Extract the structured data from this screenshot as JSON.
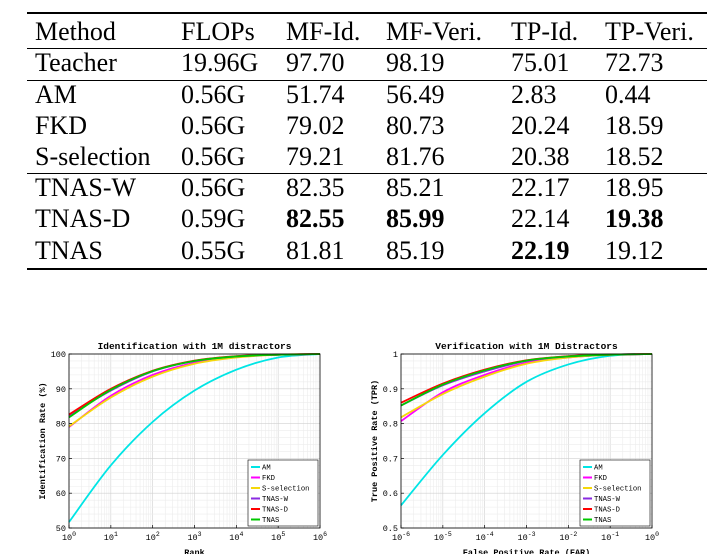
{
  "table": {
    "columns": [
      "Method",
      "FLOPs",
      "MF-Id.",
      "MF-Veri.",
      "TP-Id.",
      "TP-Veri."
    ],
    "rows": [
      {
        "cells": [
          "Teacher",
          "19.96G",
          "97.70",
          "98.19",
          "75.01",
          "72.73"
        ],
        "bold": []
      },
      {
        "cells": [
          "AM",
          "0.56G",
          "51.74",
          "56.49",
          "2.83",
          "0.44"
        ],
        "bold": []
      },
      {
        "cells": [
          "FKD",
          "0.56G",
          "79.02",
          "80.73",
          "20.24",
          "18.59"
        ],
        "bold": []
      },
      {
        "cells": [
          "S-selection",
          "0.56G",
          "79.21",
          "81.76",
          "20.38",
          "18.52"
        ],
        "bold": []
      },
      {
        "cells": [
          "TNAS-W",
          "0.56G",
          "82.35",
          "85.21",
          "22.17",
          "18.95"
        ],
        "bold": []
      },
      {
        "cells": [
          "TNAS-D",
          "0.59G",
          "82.55",
          "85.99",
          "22.14",
          "19.38"
        ],
        "bold": [
          2,
          3,
          5
        ]
      },
      {
        "cells": [
          "TNAS",
          "0.55G",
          "81.81",
          "85.19",
          "22.19",
          "19.12"
        ],
        "bold": [
          4
        ]
      }
    ]
  },
  "series_colors": {
    "AM": "#00e5e5",
    "FKD": "#ff00ff",
    "S-selection": "#f5d80a",
    "TNAS-W": "#8a2be2",
    "TNAS-D": "#ff0000",
    "TNAS": "#00c800"
  },
  "chart_data": [
    {
      "type": "line",
      "title": "Identification with 1M distractors",
      "xlabel": "Rank",
      "ylabel": "Identification Rate (%)",
      "x_scale": "log",
      "xlim": [
        1,
        1000000
      ],
      "ylim": [
        50,
        100
      ],
      "x_ticks": [
        1,
        10,
        100,
        1000,
        10000,
        100000,
        1000000
      ],
      "x_tick_labels": [
        [
          "10",
          "0"
        ],
        [
          "10",
          "1"
        ],
        [
          "10",
          "2"
        ],
        [
          "10",
          "3"
        ],
        [
          "10",
          "4"
        ],
        [
          "10",
          "5"
        ],
        [
          "10",
          "6"
        ]
      ],
      "y_ticks": [
        50,
        60,
        70,
        80,
        90,
        100
      ],
      "y_tick_labels": [
        "50",
        "60",
        "70",
        "80",
        "90",
        "100"
      ],
      "grid": true,
      "legend_position": "bottom-right",
      "x": [
        1,
        10,
        100,
        1000,
        10000,
        100000,
        1000000
      ],
      "series": [
        {
          "name": "AM",
          "values": [
            51.7,
            68,
            80.5,
            89.5,
            95.5,
            99,
            100
          ]
        },
        {
          "name": "FKD",
          "values": [
            79.0,
            88,
            94,
            97.5,
            99.2,
            99.8,
            100
          ]
        },
        {
          "name": "S-selection",
          "values": [
            79.2,
            87.5,
            93.5,
            97.2,
            99,
            99.8,
            100
          ]
        },
        {
          "name": "TNAS-W",
          "values": [
            82.3,
            89.5,
            95,
            98,
            99.3,
            99.8,
            100
          ]
        },
        {
          "name": "TNAS-D",
          "values": [
            82.6,
            90,
            95.2,
            98.1,
            99.4,
            99.8,
            100
          ]
        },
        {
          "name": "TNAS",
          "values": [
            81.8,
            89.7,
            95.1,
            98,
            99.3,
            99.8,
            100
          ]
        }
      ]
    },
    {
      "type": "line",
      "title": "Verification with 1M Distractors",
      "xlabel": "False Positive Rate (FAR)",
      "ylabel": "True Positive Rate (TPR)",
      "x_scale": "log",
      "xlim": [
        1e-06,
        1
      ],
      "ylim": [
        0.5,
        1
      ],
      "x_ticks": [
        1e-06,
        1e-05,
        0.0001,
        0.001,
        0.01,
        0.1,
        1
      ],
      "x_tick_labels": [
        [
          "10",
          "-6"
        ],
        [
          "10",
          "-5"
        ],
        [
          "10",
          "-4"
        ],
        [
          "10",
          "-3"
        ],
        [
          "10",
          "-2"
        ],
        [
          "10",
          "-1"
        ],
        [
          "10",
          "0"
        ]
      ],
      "y_ticks": [
        0.5,
        0.6,
        0.7,
        0.8,
        0.9,
        1
      ],
      "y_tick_labels": [
        "0.5",
        "0.6",
        "0.7",
        "0.8",
        "0.9",
        "1"
      ],
      "grid": true,
      "legend_position": "bottom-right",
      "x": [
        1e-06,
        1e-05,
        0.0001,
        0.001,
        0.01,
        0.1,
        1
      ],
      "series": [
        {
          "name": "AM",
          "values": [
            0.565,
            0.71,
            0.83,
            0.92,
            0.97,
            0.995,
            1
          ]
        },
        {
          "name": "FKD",
          "values": [
            0.807,
            0.89,
            0.94,
            0.975,
            0.99,
            0.998,
            1
          ]
        },
        {
          "name": "S-selection",
          "values": [
            0.818,
            0.885,
            0.935,
            0.972,
            0.99,
            0.998,
            1
          ]
        },
        {
          "name": "TNAS-W",
          "values": [
            0.852,
            0.91,
            0.95,
            0.98,
            0.993,
            0.998,
            1
          ]
        },
        {
          "name": "TNAS-D",
          "values": [
            0.86,
            0.915,
            0.955,
            0.982,
            0.994,
            0.998,
            1
          ]
        },
        {
          "name": "TNAS",
          "values": [
            0.852,
            0.912,
            0.953,
            0.981,
            0.993,
            0.998,
            1
          ]
        }
      ]
    }
  ]
}
